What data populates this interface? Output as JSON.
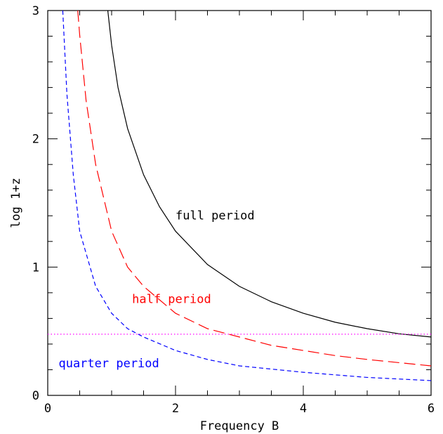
{
  "chart_data": {
    "type": "line",
    "xlabel": "Frequency B",
    "ylabel": "log 1+z",
    "xlim": [
      0,
      6
    ],
    "ylim": [
      0,
      3
    ],
    "x_ticks": [
      {
        "value": 0,
        "label": "0"
      },
      {
        "value": 2,
        "label": "2"
      },
      {
        "value": 4,
        "label": "4"
      },
      {
        "value": 6,
        "label": "6"
      }
    ],
    "y_ticks": [
      {
        "value": 0,
        "label": "0"
      },
      {
        "value": 1,
        "label": "1"
      },
      {
        "value": 2,
        "label": "2"
      },
      {
        "value": 3,
        "label": "3"
      }
    ],
    "grid": false,
    "series": [
      {
        "name": "full period",
        "color": "#000000",
        "style": "solid",
        "x": [
          0.94,
          1.0,
          1.1,
          1.25,
          1.5,
          1.75,
          2.0,
          2.5,
          3.0,
          3.5,
          4.0,
          4.5,
          5.0,
          5.5,
          6.0
        ],
        "y": [
          3.0,
          2.73,
          2.4,
          2.08,
          1.72,
          1.47,
          1.28,
          1.02,
          0.85,
          0.73,
          0.64,
          0.57,
          0.52,
          0.48,
          0.455
        ]
      },
      {
        "name": "half period",
        "color": "#ff0000",
        "style": "long-dash",
        "x": [
          0.47,
          0.5,
          0.6,
          0.75,
          1.0,
          1.25,
          1.5,
          2.0,
          2.5,
          3.0,
          3.5,
          4.0,
          4.5,
          5.0,
          5.5,
          6.0
        ],
        "y": [
          3.0,
          2.81,
          2.3,
          1.8,
          1.28,
          1.0,
          0.85,
          0.64,
          0.52,
          0.455,
          0.39,
          0.35,
          0.31,
          0.28,
          0.255,
          0.23
        ]
      },
      {
        "name": "quarter period",
        "color": "#0000ff",
        "style": "short-dash",
        "x": [
          0.235,
          0.25,
          0.3,
          0.4,
          0.5,
          0.75,
          1.0,
          1.25,
          1.5,
          2.0,
          2.5,
          3.0,
          4.0,
          5.0,
          6.0
        ],
        "y": [
          3.0,
          2.85,
          2.35,
          1.72,
          1.28,
          0.85,
          0.64,
          0.52,
          0.455,
          0.35,
          0.28,
          0.23,
          0.18,
          0.14,
          0.115
        ]
      },
      {
        "name": "",
        "color": "#ff00ff",
        "style": "dotted",
        "x": [
          0,
          6
        ],
        "y": [
          0.477,
          0.477
        ]
      }
    ],
    "annotations": [
      {
        "text": "full period",
        "x": 2.0,
        "y": 1.37,
        "color": "#000000"
      },
      {
        "text": "half period",
        "x": 1.32,
        "y": 0.72,
        "color": "#ff0000"
      },
      {
        "text": "quarter period",
        "x": 0.17,
        "y": 0.22,
        "color": "#0000ff"
      }
    ]
  }
}
